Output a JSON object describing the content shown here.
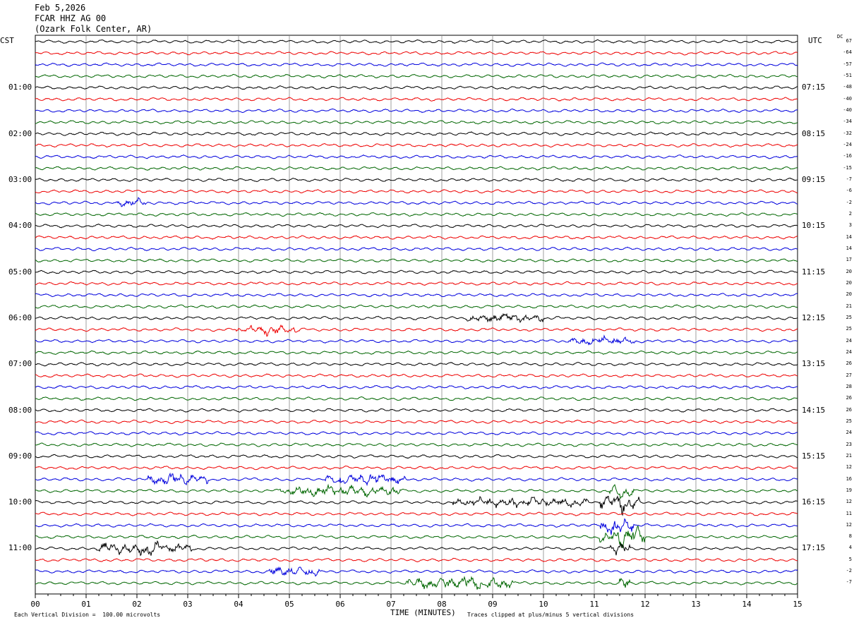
{
  "header": {
    "date": "Feb 5,2026",
    "station": "FCAR HHZ AG 00",
    "location": "(Ozark Folk Center, AR)"
  },
  "axes": {
    "left_tz": "CST",
    "right_tz": "UTC",
    "dc_label": "DC",
    "xlabel": "TIME (MINUTES)"
  },
  "footer": {
    "scale_note": "Each Vertical Division =  100.00 microvolts",
    "clip_note": "Traces clipped at plus/minus 5 vertical divisions"
  },
  "colors": {
    "black": "#000000",
    "red": "#ee0000",
    "blue": "#0000dd",
    "green": "#006600",
    "grid": "#888888"
  },
  "chart_data": {
    "type": "line",
    "title": "Feb 5,2026 FCAR HHZ AG 00 (Ozark Folk Center, AR)",
    "xlabel": "TIME (MINUTES)",
    "xlim": [
      0,
      15
    ],
    "x_ticks": [
      "00",
      "01",
      "02",
      "03",
      "04",
      "05",
      "06",
      "07",
      "08",
      "09",
      "10",
      "11",
      "12",
      "13",
      "14",
      "15"
    ],
    "left_time_labels": [
      "01:00",
      "02:00",
      "03:00",
      "04:00",
      "05:00",
      "06:00",
      "07:00",
      "08:00",
      "09:00",
      "10:00",
      "11:00"
    ],
    "right_time_labels": [
      "07:15",
      "08:15",
      "09:15",
      "10:15",
      "11:15",
      "12:15",
      "13:15",
      "14:15",
      "15:15",
      "16:15",
      "17:15"
    ],
    "trace_count": 48,
    "trace_color_cycle": [
      "black",
      "red",
      "blue",
      "green"
    ],
    "dc_offsets": [
      "67",
      "-64",
      "-57",
      "-51",
      "-48",
      "-40",
      "-40",
      "-34",
      "-32",
      "-24",
      "-16",
      "-15",
      "-7",
      "-6",
      "-2",
      "2",
      "3",
      "14",
      "14",
      "17",
      "20",
      "20",
      "20",
      "21",
      "25",
      "25",
      "24",
      "24",
      "26",
      "27",
      "28",
      "26",
      "26",
      "25",
      "24",
      "23",
      "21",
      "12",
      "16",
      "19",
      "12",
      "11",
      "12",
      "8",
      "4",
      "5",
      "-2",
      "-7"
    ],
    "grid": true,
    "scale_microvolts_per_division": 100.0,
    "clip_divisions": 5,
    "events": [
      {
        "trace": 14,
        "start_min": 1.6,
        "end_min": 2.2,
        "amp": 2.5
      },
      {
        "trace": 25,
        "start_min": 3.9,
        "end_min": 5.2,
        "amp": 2.5
      },
      {
        "trace": 24,
        "start_min": 8.5,
        "end_min": 10.0,
        "amp": 2.5
      },
      {
        "trace": 26,
        "start_min": 10.5,
        "end_min": 11.8,
        "amp": 2.0
      },
      {
        "trace": 38,
        "start_min": 2.2,
        "end_min": 3.4,
        "amp": 3.5
      },
      {
        "trace": 38,
        "start_min": 5.7,
        "end_min": 7.3,
        "amp": 3.5
      },
      {
        "trace": 39,
        "start_min": 4.8,
        "end_min": 7.2,
        "amp": 3.5
      },
      {
        "trace": 39,
        "start_min": 11.3,
        "end_min": 11.8,
        "amp": 6.0
      },
      {
        "trace": 40,
        "start_min": 8.2,
        "end_min": 10.9,
        "amp": 3.0
      },
      {
        "trace": 40,
        "start_min": 11.1,
        "end_min": 11.9,
        "amp": 7.0
      },
      {
        "trace": 42,
        "start_min": 11.1,
        "end_min": 11.8,
        "amp": 6.0
      },
      {
        "trace": 43,
        "start_min": 11.1,
        "end_min": 12.0,
        "amp": 8.0
      },
      {
        "trace": 44,
        "start_min": 1.2,
        "end_min": 3.1,
        "amp": 4.5
      },
      {
        "trace": 44,
        "start_min": 11.3,
        "end_min": 11.7,
        "amp": 5.0
      },
      {
        "trace": 46,
        "start_min": 4.6,
        "end_min": 5.6,
        "amp": 3.5
      },
      {
        "trace": 47,
        "start_min": 7.3,
        "end_min": 9.4,
        "amp": 4.5
      },
      {
        "trace": 47,
        "start_min": 11.5,
        "end_min": 11.7,
        "amp": 6.0
      }
    ]
  }
}
